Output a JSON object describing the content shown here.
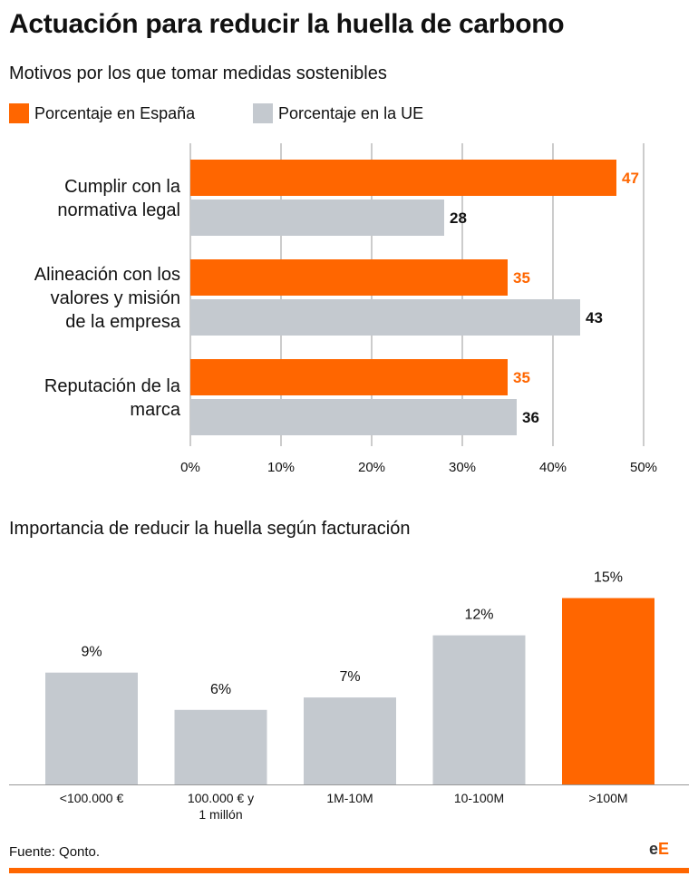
{
  "title": "Actuación para reducir la huella de carbono",
  "source": "Fuente: Qonto.",
  "logo_text": "eE",
  "colors": {
    "spain": "#ff6600",
    "eu": "#c4c9cf",
    "grid": "#cccccc",
    "text": "#111111"
  },
  "chart_data": [
    {
      "type": "bar",
      "orientation": "horizontal",
      "title": "Motivos por los que tomar medidas sostenibles",
      "categories": [
        [
          "Cumplir con la",
          "normativa legal"
        ],
        [
          "Alineación con los",
          "valores y misión",
          "de la empresa"
        ],
        [
          "Reputación de la",
          "marca"
        ]
      ],
      "series": [
        {
          "name": "Porcentaje en España",
          "values": [
            47,
            35,
            35
          ]
        },
        {
          "name": "Porcentaje en la UE",
          "values": [
            28,
            43,
            36
          ]
        }
      ],
      "x_ticks": [
        "0%",
        "10%",
        "20%",
        "30%",
        "40%",
        "50%"
      ],
      "xlim": [
        0,
        50
      ],
      "grid": true,
      "legend": "top-left"
    },
    {
      "type": "bar",
      "orientation": "vertical",
      "title": "Importancia de reducir la huella según facturación",
      "categories": [
        [
          "<100.000 €"
        ],
        [
          "100.000 € y",
          "1 millón"
        ],
        [
          "1M-10M"
        ],
        [
          "10-100M"
        ],
        [
          ">100M"
        ]
      ],
      "values": [
        9,
        6,
        7,
        12,
        15
      ],
      "value_labels": [
        "9%",
        "6%",
        "7%",
        "12%",
        "15%"
      ],
      "highlight_index": 4,
      "ylim": [
        0,
        16
      ]
    }
  ]
}
